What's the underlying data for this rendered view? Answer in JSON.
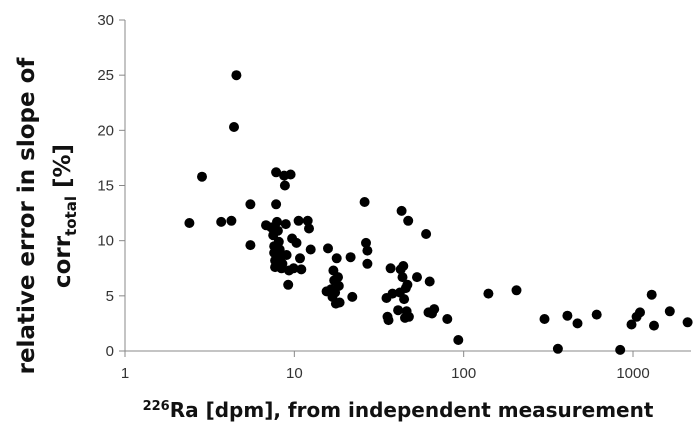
{
  "chart_data": {
    "type": "scatter",
    "title": "",
    "xlabel": {
      "sup": "226",
      "main": "Ra [dpm], from independent measurement"
    },
    "ylabel": {
      "line1": "relative error in slope of",
      "line2_main": "corr",
      "line2_sub": "total",
      "line2_tail": " [%]"
    },
    "x_scale": "log",
    "xlim": [
      1,
      2200
    ],
    "ylim": [
      0,
      30
    ],
    "x_ticks": [
      {
        "value": 1,
        "label": "1"
      },
      {
        "value": 10,
        "label": "10"
      },
      {
        "value": 100,
        "label": "100"
      },
      {
        "value": 1000,
        "label": "1000"
      }
    ],
    "y_ticks": [
      {
        "value": 0,
        "label": "0"
      },
      {
        "value": 5,
        "label": "5"
      },
      {
        "value": 10,
        "label": "10"
      },
      {
        "value": 15,
        "label": "15"
      },
      {
        "value": 20,
        "label": "20"
      },
      {
        "value": 25,
        "label": "25"
      },
      {
        "value": 30,
        "label": "30"
      }
    ],
    "grid": false,
    "legend": false,
    "marker_color": "#000000",
    "axis_color": "#888888",
    "points": [
      {
        "x": 2.4,
        "y": 11.6
      },
      {
        "x": 2.85,
        "y": 15.8
      },
      {
        "x": 3.7,
        "y": 11.7
      },
      {
        "x": 4.25,
        "y": 11.8
      },
      {
        "x": 4.4,
        "y": 20.3
      },
      {
        "x": 4.55,
        "y": 25.0
      },
      {
        "x": 5.5,
        "y": 13.3
      },
      {
        "x": 5.5,
        "y": 9.6
      },
      {
        "x": 6.8,
        "y": 11.4
      },
      {
        "x": 7.3,
        "y": 11.2
      },
      {
        "x": 7.5,
        "y": 10.5
      },
      {
        "x": 7.6,
        "y": 9.5
      },
      {
        "x": 7.6,
        "y": 8.9
      },
      {
        "x": 7.7,
        "y": 8.2
      },
      {
        "x": 7.7,
        "y": 7.6
      },
      {
        "x": 7.8,
        "y": 16.2
      },
      {
        "x": 7.8,
        "y": 13.3
      },
      {
        "x": 7.9,
        "y": 11.7
      },
      {
        "x": 8.0,
        "y": 10.9
      },
      {
        "x": 8.1,
        "y": 9.9
      },
      {
        "x": 8.2,
        "y": 9.2
      },
      {
        "x": 8.3,
        "y": 8.4
      },
      {
        "x": 8.4,
        "y": 7.5
      },
      {
        "x": 8.5,
        "y": 7.9
      },
      {
        "x": 8.7,
        "y": 15.9
      },
      {
        "x": 8.8,
        "y": 15.0
      },
      {
        "x": 8.9,
        "y": 11.5
      },
      {
        "x": 9.0,
        "y": 8.7
      },
      {
        "x": 9.2,
        "y": 6.0
      },
      {
        "x": 9.3,
        "y": 7.3
      },
      {
        "x": 9.5,
        "y": 16.0
      },
      {
        "x": 9.7,
        "y": 10.2
      },
      {
        "x": 9.9,
        "y": 7.5
      },
      {
        "x": 10.3,
        "y": 9.8
      },
      {
        "x": 10.6,
        "y": 11.8
      },
      {
        "x": 10.8,
        "y": 8.4
      },
      {
        "x": 11.0,
        "y": 7.4
      },
      {
        "x": 12.0,
        "y": 11.8
      },
      {
        "x": 12.2,
        "y": 11.1
      },
      {
        "x": 12.5,
        "y": 9.2
      },
      {
        "x": 15.5,
        "y": 5.4
      },
      {
        "x": 15.8,
        "y": 9.3
      },
      {
        "x": 16.5,
        "y": 5.6
      },
      {
        "x": 16.8,
        "y": 4.9
      },
      {
        "x": 17.0,
        "y": 7.3
      },
      {
        "x": 17.2,
        "y": 6.4
      },
      {
        "x": 17.4,
        "y": 5.3
      },
      {
        "x": 17.6,
        "y": 4.3
      },
      {
        "x": 17.8,
        "y": 8.4
      },
      {
        "x": 18.1,
        "y": 6.7
      },
      {
        "x": 18.3,
        "y": 5.9
      },
      {
        "x": 18.5,
        "y": 4.4
      },
      {
        "x": 21.5,
        "y": 8.5
      },
      {
        "x": 22.0,
        "y": 4.9
      },
      {
        "x": 26.0,
        "y": 13.5
      },
      {
        "x": 26.5,
        "y": 9.8
      },
      {
        "x": 27.0,
        "y": 9.1
      },
      {
        "x": 27.0,
        "y": 7.9
      },
      {
        "x": 35.0,
        "y": 4.8
      },
      {
        "x": 35.5,
        "y": 3.1
      },
      {
        "x": 36.0,
        "y": 2.8
      },
      {
        "x": 37.0,
        "y": 7.5
      },
      {
        "x": 38.0,
        "y": 5.2
      },
      {
        "x": 41.0,
        "y": 3.7
      },
      {
        "x": 42.0,
        "y": 5.3
      },
      {
        "x": 42.5,
        "y": 7.4
      },
      {
        "x": 43.0,
        "y": 12.7
      },
      {
        "x": 43.5,
        "y": 6.7
      },
      {
        "x": 44.0,
        "y": 7.7
      },
      {
        "x": 44.5,
        "y": 4.7
      },
      {
        "x": 45.0,
        "y": 3.0
      },
      {
        "x": 45.5,
        "y": 5.7
      },
      {
        "x": 46.0,
        "y": 3.6
      },
      {
        "x": 46.5,
        "y": 6.0
      },
      {
        "x": 47.0,
        "y": 11.8
      },
      {
        "x": 47.5,
        "y": 3.1
      },
      {
        "x": 53.0,
        "y": 6.7
      },
      {
        "x": 60.0,
        "y": 10.6
      },
      {
        "x": 62.0,
        "y": 3.5
      },
      {
        "x": 63.0,
        "y": 6.3
      },
      {
        "x": 65.0,
        "y": 3.4
      },
      {
        "x": 67.0,
        "y": 3.8
      },
      {
        "x": 80.0,
        "y": 2.9
      },
      {
        "x": 93.0,
        "y": 1.0
      },
      {
        "x": 140.0,
        "y": 5.2
      },
      {
        "x": 205.0,
        "y": 5.5
      },
      {
        "x": 300.0,
        "y": 2.9
      },
      {
        "x": 360.0,
        "y": 0.2
      },
      {
        "x": 410.0,
        "y": 3.2
      },
      {
        "x": 470.0,
        "y": 2.5
      },
      {
        "x": 610.0,
        "y": 3.3
      },
      {
        "x": 840.0,
        "y": 0.1
      },
      {
        "x": 980.0,
        "y": 2.4
      },
      {
        "x": 1050.0,
        "y": 3.1
      },
      {
        "x": 1100.0,
        "y": 3.5
      },
      {
        "x": 1290.0,
        "y": 5.1
      },
      {
        "x": 1330.0,
        "y": 2.3
      },
      {
        "x": 1650.0,
        "y": 3.6
      },
      {
        "x": 2100.0,
        "y": 2.6
      }
    ]
  }
}
